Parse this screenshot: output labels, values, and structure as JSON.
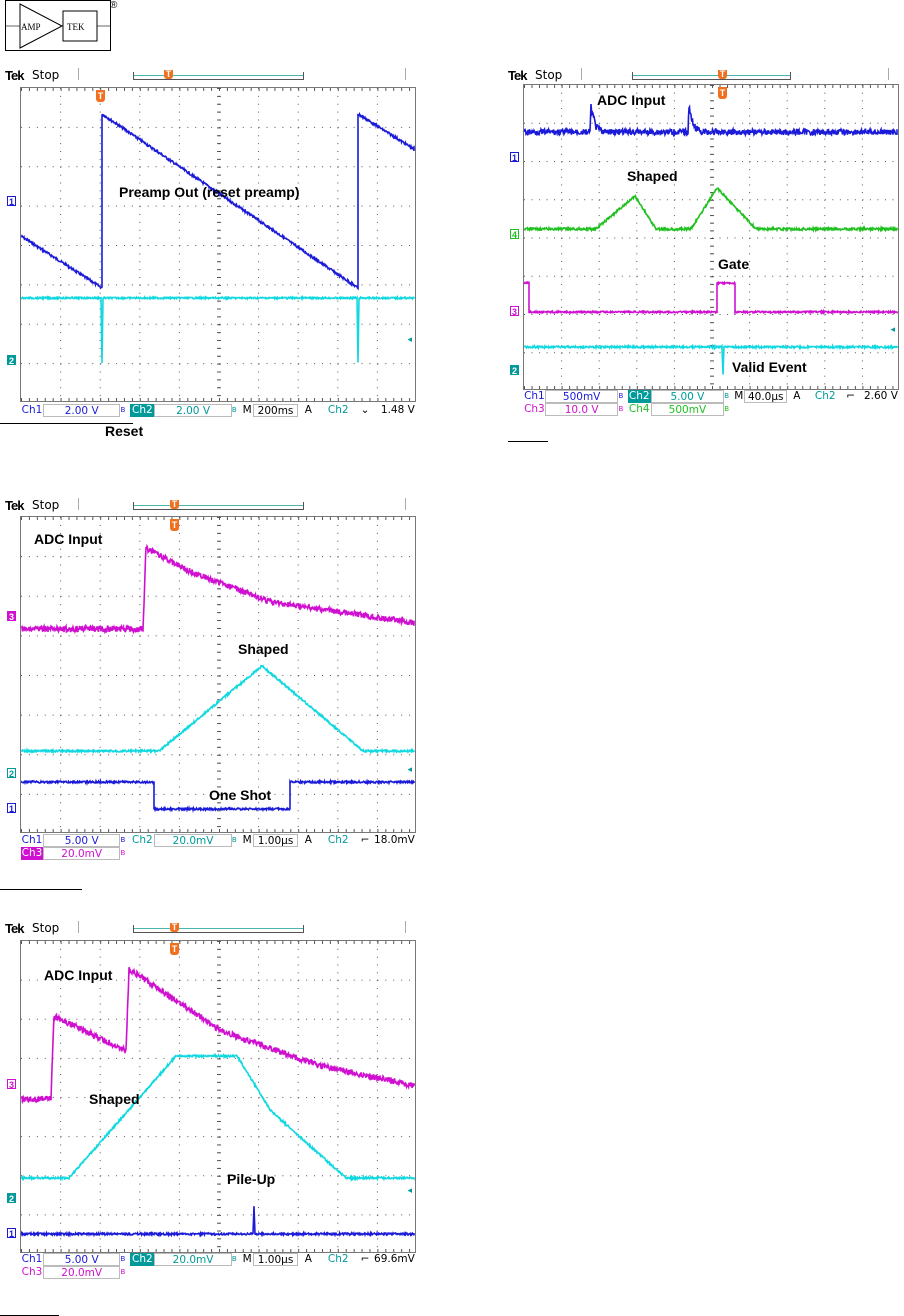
{
  "logo": {
    "left_text": "AMP",
    "right_text": "TEK",
    "registered": "®"
  },
  "colors": {
    "ch1": "#1a1ad8",
    "ch2": "#10d8e0",
    "ch3": "#d010d0",
    "ch4": "#20c020",
    "ch2_text": "#009a9a",
    "trigger": "#f07020"
  },
  "scopes": [
    {
      "brand": "Tek",
      "state": "Stop",
      "labels": [
        "Preamp Out (reset preamp)",
        "Reset"
      ],
      "markers": [
        "1",
        "2"
      ],
      "status": [
        [
          [
            "Ch1",
            "ch1"
          ],
          [
            "2.00 V",
            "ch1"
          ],
          [
            "Ch2",
            "ch2h"
          ],
          [
            "2.00 V",
            "ch2"
          ],
          [
            "M",
            ""
          ],
          [
            "200ms",
            ""
          ],
          [
            "A",
            ""
          ],
          [
            "Ch2",
            "ch2"
          ],
          [
            "⌄",
            ""
          ],
          [
            "1.48 V",
            ""
          ]
        ]
      ]
    },
    {
      "brand": "Tek",
      "state": "Stop",
      "labels": [
        "ADC Input",
        "Shaped",
        "Gate",
        "Valid Event"
      ],
      "markers": [
        "1",
        "4",
        "3",
        "2"
      ],
      "status": [
        [
          [
            "Ch1",
            "ch1"
          ],
          [
            "500mV",
            "ch1"
          ],
          [
            "Ch2",
            "ch2h"
          ],
          [
            "5.00 V",
            "ch2"
          ],
          [
            "M",
            ""
          ],
          [
            "40.0µs",
            ""
          ],
          [
            "A",
            ""
          ],
          [
            "Ch2",
            "ch2"
          ],
          [
            "⌐",
            ""
          ],
          [
            "2.60 V",
            ""
          ]
        ],
        [
          [
            "Ch3",
            "ch3"
          ],
          [
            "10.0 V",
            "ch3"
          ],
          [
            "Ch4",
            "ch4"
          ],
          [
            "500mV",
            "ch4"
          ]
        ]
      ]
    },
    {
      "brand": "Tek",
      "state": "Stop",
      "labels": [
        "ADC Input",
        "Shaped",
        "One Shot"
      ],
      "markers": [
        "3",
        "2",
        "1"
      ],
      "status": [
        [
          [
            "Ch1",
            "ch1"
          ],
          [
            "5.00 V",
            "ch1"
          ],
          [
            "Ch2",
            "ch2"
          ],
          [
            "20.0mV",
            "ch2"
          ],
          [
            "M",
            ""
          ],
          [
            "1.00µs",
            ""
          ],
          [
            "A",
            ""
          ],
          [
            "Ch2",
            "ch2"
          ],
          [
            "⌐",
            ""
          ],
          [
            "18.0mV",
            ""
          ]
        ],
        [
          [
            "Ch3",
            "ch3h"
          ],
          [
            "20.0mV",
            "ch3"
          ]
        ]
      ]
    },
    {
      "brand": "Tek",
      "state": "Stop",
      "labels": [
        "ADC Input",
        "Shaped",
        "Pile-Up"
      ],
      "markers": [
        "3",
        "2",
        "1"
      ],
      "status": [
        [
          [
            "Ch1",
            "ch1"
          ],
          [
            "5.00 V",
            "ch1"
          ],
          [
            "Ch2",
            "ch2h"
          ],
          [
            "20.0mV",
            "ch2"
          ],
          [
            "M",
            ""
          ],
          [
            "1.00µs",
            ""
          ],
          [
            "A",
            ""
          ],
          [
            "Ch2",
            "ch2"
          ],
          [
            "⌐",
            ""
          ],
          [
            "69.6mV",
            ""
          ]
        ],
        [
          [
            "Ch3",
            "ch3"
          ],
          [
            "20.0mV",
            "ch3"
          ]
        ]
      ]
    }
  ]
}
